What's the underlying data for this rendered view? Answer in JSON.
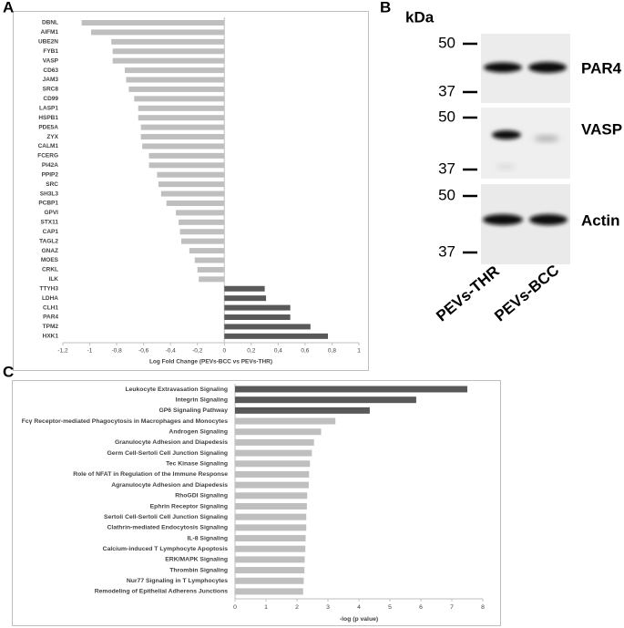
{
  "panel_labels": [
    "A",
    "B",
    "C"
  ],
  "blot": {
    "unit": "kDa",
    "panels": [
      {
        "protein": "PAR4",
        "markers": [
          50,
          37
        ]
      },
      {
        "protein": "VASP",
        "markers": [
          50,
          37
        ]
      },
      {
        "protein": "Actin",
        "markers": [
          50,
          37
        ]
      }
    ],
    "lanes": [
      "PEVs-THR",
      "PEVs-BCC"
    ]
  },
  "chart_data": [
    {
      "type": "hbar",
      "x_label": "Log Fold Change (PEVs-BCC vs PEVs-THR)",
      "categories": [
        "DBNL",
        "AIFM1",
        "UBE2N",
        "FYB1",
        "VASP",
        "CD63",
        "JAM3",
        "SRC8",
        "CD99",
        "LASP1",
        "HSPB1",
        "PDE5A",
        "ZYX",
        "CALM1",
        "FCERG",
        "PI42A",
        "PPIP2",
        "SRC",
        "SH3L3",
        "PCBP1",
        "GPVI",
        "STX11",
        "CAP1",
        "TAGL2",
        "GNAZ",
        "MOES",
        "CRKL",
        "ILK",
        "TTYH3",
        "LDHA",
        "CLH1",
        "PAR4",
        "TPM2",
        "HXK1"
      ],
      "values": [
        -1.06,
        -0.99,
        -0.84,
        -0.83,
        -0.83,
        -0.74,
        -0.73,
        -0.71,
        -0.67,
        -0.64,
        -0.64,
        -0.62,
        -0.62,
        -0.61,
        -0.56,
        -0.56,
        -0.5,
        -0.49,
        -0.47,
        -0.43,
        -0.36,
        -0.34,
        -0.33,
        -0.32,
        -0.26,
        -0.22,
        -0.2,
        -0.19,
        0.3,
        0.31,
        0.49,
        0.49,
        0.64,
        0.77
      ],
      "colors": [
        "#bfbfbf",
        "#bfbfbf",
        "#bfbfbf",
        "#bfbfbf",
        "#bfbfbf",
        "#bfbfbf",
        "#bfbfbf",
        "#bfbfbf",
        "#bfbfbf",
        "#bfbfbf",
        "#bfbfbf",
        "#bfbfbf",
        "#bfbfbf",
        "#bfbfbf",
        "#bfbfbf",
        "#bfbfbf",
        "#bfbfbf",
        "#bfbfbf",
        "#bfbfbf",
        "#bfbfbf",
        "#bfbfbf",
        "#bfbfbf",
        "#bfbfbf",
        "#bfbfbf",
        "#bfbfbf",
        "#bfbfbf",
        "#bfbfbf",
        "#bfbfbf",
        "#595959",
        "#595959",
        "#595959",
        "#595959",
        "#595959",
        "#595959"
      ],
      "xlim": [
        -1.2,
        1
      ],
      "xticks": [
        {
          "value": -1.2,
          "label": "-1,2"
        },
        -1,
        {
          "value": -0.8,
          "label": "-0,8"
        },
        {
          "value": -0.6,
          "label": "-0,6"
        },
        {
          "value": -0.4,
          "label": "-0,4"
        },
        {
          "value": -0.2,
          "label": "-0,2"
        },
        0,
        {
          "value": 0.2,
          "label": "0,2"
        },
        {
          "value": 0.4,
          "label": "0,4"
        },
        {
          "value": 0.6,
          "label": "0,6"
        },
        {
          "value": 0.8,
          "label": "0,8"
        },
        1
      ]
    },
    {
      "type": "hbar",
      "x_label": "-log (p value)",
      "categories": [
        "Leukocyte Extravasation Signaling",
        "Integrin Signaling",
        "GP6 Signaling Pathway",
        "Fcγ Receptor-mediated Phagocytosis in Macrophages and Monocytes",
        "Androgen Signaling",
        "Granulocyte Adhesion and Diapedesis",
        "Germ Cell-Sertoli Cell Junction Signaling",
        "Tec Kinase Signaling",
        "Role of NFAT in Regulation of the Immune Response",
        "Agranulocyte Adhesion and Diapedesis",
        "RhoGDI Signaling",
        "Ephrin Receptor Signaling",
        "Sertoli Cell-Sertoli Cell Junction Signaling",
        "Clathrin-mediated Endocytosis Signaling",
        "IL-8 Signaling",
        "Calcium-induced T Lymphocyte Apoptosis",
        "ERK/MAPK Signaling",
        "Thrombin Signaling",
        "Nur77 Signaling in T Lymphocytes",
        "Remodeling of Epithelial Adherens Junctions"
      ],
      "values": [
        7.5,
        5.85,
        4.35,
        3.24,
        2.78,
        2.55,
        2.48,
        2.42,
        2.39,
        2.38,
        2.33,
        2.32,
        2.3,
        2.3,
        2.28,
        2.27,
        2.25,
        2.24,
        2.22,
        2.2
      ],
      "colors": [
        "#595959",
        "#595959",
        "#595959",
        "#bfbfbf",
        "#bfbfbf",
        "#bfbfbf",
        "#bfbfbf",
        "#bfbfbf",
        "#bfbfbf",
        "#bfbfbf",
        "#bfbfbf",
        "#bfbfbf",
        "#bfbfbf",
        "#bfbfbf",
        "#bfbfbf",
        "#bfbfbf",
        "#bfbfbf",
        "#bfbfbf",
        "#bfbfbf",
        "#bfbfbf"
      ],
      "xlim": [
        0,
        8
      ],
      "xticks": [
        0,
        1,
        2,
        3,
        4,
        5,
        6,
        7,
        8
      ]
    }
  ]
}
